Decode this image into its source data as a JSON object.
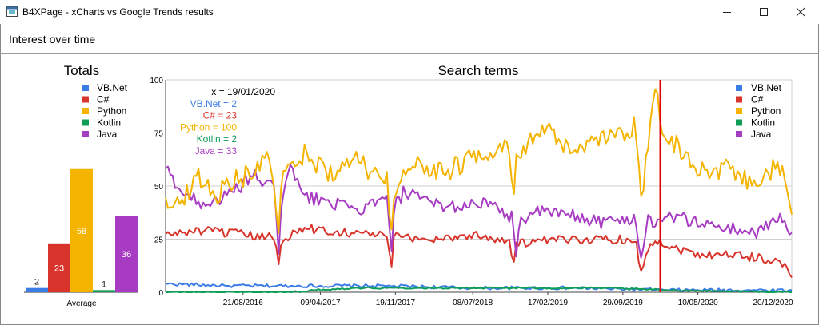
{
  "window": {
    "title": "B4XPage - xCharts vs Google Trends results",
    "minimize_icon": "minimize-icon",
    "maximize_icon": "maximize-icon",
    "close_icon": "close-icon"
  },
  "page": {
    "header": "Interest over time"
  },
  "series_colors": {
    "VB.Net": "#3b7de6",
    "C#": "#d9342b",
    "Python": "#f4b400",
    "Kotlin": "#0f9d58",
    "Java": "#a73cc3"
  },
  "totals_chart": {
    "title": "Totals",
    "legend": [
      "VB.Net",
      "C#",
      "Python",
      "Kotlin",
      "Java"
    ],
    "chart_data": {
      "type": "bar",
      "title": "Totals",
      "categories": [
        "Average"
      ],
      "series": [
        {
          "name": "VB.Net",
          "values": [
            2
          ]
        },
        {
          "name": "C#",
          "values": [
            23
          ]
        },
        {
          "name": "Python",
          "values": [
            58
          ]
        },
        {
          "name": "Kotlin",
          "values": [
            1
          ]
        },
        {
          "name": "Java",
          "values": [
            36
          ]
        }
      ],
      "ylim": [
        0,
        100
      ],
      "grid": false,
      "legend_position": "top"
    }
  },
  "trends_chart": {
    "title": "Search terms",
    "legend": [
      "VB.Net",
      "C#",
      "Python",
      "Kotlin",
      "Java"
    ],
    "cursor": {
      "x_label": "x = 19/01/2020",
      "rows": [
        {
          "label": "VB.Net = 2",
          "series": "VB.Net"
        },
        {
          "label": "C# = 23",
          "series": "C#"
        },
        {
          "label": "Python = 100",
          "series": "Python"
        },
        {
          "label": "Kotlin = 2",
          "series": "Kotlin"
        },
        {
          "label": "Java = 33",
          "series": "Java"
        }
      ]
    },
    "chart_data": {
      "type": "line",
      "title": "Search terms",
      "xlabel": "",
      "ylabel": "",
      "ylim": [
        0,
        100
      ],
      "yticks": [
        0,
        25,
        50,
        75,
        100
      ],
      "x_range": [
        "2016-01-03",
        "2021-02-14"
      ],
      "x_ticks": [
        "21/08/2016",
        "09/04/2017",
        "19/11/2017",
        "08/07/2018",
        "17/02/2019",
        "29/09/2019",
        "10/05/2020",
        "20/12/2020"
      ],
      "grid": true,
      "legend_position": "top-right",
      "cursor_x": "2020-01-19",
      "series": [
        {
          "name": "VB.Net",
          "keypoints": [
            [
              0,
              4
            ],
            [
              0.1,
              3
            ],
            [
              0.2,
              3
            ],
            [
              0.35,
              3
            ],
            [
              0.5,
              2
            ],
            [
              0.65,
              2
            ],
            [
              0.8,
              1
            ],
            [
              0.93,
              1
            ],
            [
              1,
              1
            ]
          ]
        },
        {
          "name": "C#",
          "keypoints": [
            [
              0,
              27
            ],
            [
              0.05,
              29
            ],
            [
              0.1,
              28
            ],
            [
              0.15,
              26
            ],
            [
              0.175,
              26
            ],
            [
              0.18,
              12
            ],
            [
              0.185,
              25
            ],
            [
              0.22,
              30
            ],
            [
              0.3,
              28
            ],
            [
              0.355,
              27
            ],
            [
              0.36,
              9
            ],
            [
              0.365,
              26
            ],
            [
              0.42,
              25
            ],
            [
              0.5,
              27
            ],
            [
              0.55,
              24
            ],
            [
              0.555,
              11
            ],
            [
              0.56,
              23
            ],
            [
              0.65,
              25
            ],
            [
              0.75,
              25
            ],
            [
              0.76,
              9
            ],
            [
              0.77,
              20
            ],
            [
              0.785,
              25
            ],
            [
              0.8,
              22
            ],
            [
              0.85,
              18
            ],
            [
              0.9,
              18
            ],
            [
              0.95,
              16
            ],
            [
              0.98,
              15
            ],
            [
              1,
              7
            ]
          ]
        },
        {
          "name": "Python",
          "keypoints": [
            [
              0,
              45
            ],
            [
              0.02,
              40
            ],
            [
              0.05,
              55
            ],
            [
              0.08,
              45
            ],
            [
              0.1,
              52
            ],
            [
              0.13,
              55
            ],
            [
              0.16,
              63
            ],
            [
              0.175,
              50
            ],
            [
              0.18,
              25
            ],
            [
              0.185,
              52
            ],
            [
              0.22,
              65
            ],
            [
              0.27,
              55
            ],
            [
              0.3,
              62
            ],
            [
              0.355,
              52
            ],
            [
              0.36,
              25
            ],
            [
              0.365,
              48
            ],
            [
              0.4,
              60
            ],
            [
              0.45,
              57
            ],
            [
              0.5,
              65
            ],
            [
              0.55,
              70
            ],
            [
              0.555,
              35
            ],
            [
              0.56,
              60
            ],
            [
              0.6,
              78
            ],
            [
              0.65,
              65
            ],
            [
              0.7,
              72
            ],
            [
              0.75,
              78
            ],
            [
              0.76,
              40
            ],
            [
              0.77,
              70
            ],
            [
              0.784,
              100
            ],
            [
              0.79,
              78
            ],
            [
              0.82,
              68
            ],
            [
              0.85,
              58
            ],
            [
              0.9,
              58
            ],
            [
              0.95,
              50
            ],
            [
              0.97,
              58
            ],
            [
              0.99,
              55
            ],
            [
              1,
              40
            ]
          ]
        },
        {
          "name": "Kotlin",
          "keypoints": [
            [
              0,
              0
            ],
            [
              0.2,
              0
            ],
            [
              0.24,
              1
            ],
            [
              0.3,
              2
            ],
            [
              0.4,
              2
            ],
            [
              0.6,
              2
            ],
            [
              0.7,
              2
            ],
            [
              0.8,
              1
            ],
            [
              1,
              0
            ]
          ]
        },
        {
          "name": "Java",
          "keypoints": [
            [
              0,
              58
            ],
            [
              0.03,
              46
            ],
            [
              0.06,
              42
            ],
            [
              0.1,
              45
            ],
            [
              0.14,
              55
            ],
            [
              0.175,
              48
            ],
            [
              0.18,
              18
            ],
            [
              0.185,
              45
            ],
            [
              0.2,
              58
            ],
            [
              0.22,
              45
            ],
            [
              0.27,
              42
            ],
            [
              0.3,
              38
            ],
            [
              0.355,
              44
            ],
            [
              0.36,
              15
            ],
            [
              0.365,
              40
            ],
            [
              0.38,
              47
            ],
            [
              0.42,
              42
            ],
            [
              0.47,
              40
            ],
            [
              0.5,
              43
            ],
            [
              0.555,
              35
            ],
            [
              0.56,
              18
            ],
            [
              0.565,
              34
            ],
            [
              0.6,
              38
            ],
            [
              0.65,
              36
            ],
            [
              0.7,
              33
            ],
            [
              0.75,
              35
            ],
            [
              0.76,
              15
            ],
            [
              0.77,
              35
            ],
            [
              0.784,
              33
            ],
            [
              0.8,
              36
            ],
            [
              0.85,
              33
            ],
            [
              0.9,
              30
            ],
            [
              0.95,
              28
            ],
            [
              0.98,
              37
            ],
            [
              1,
              26
            ]
          ]
        }
      ]
    }
  }
}
